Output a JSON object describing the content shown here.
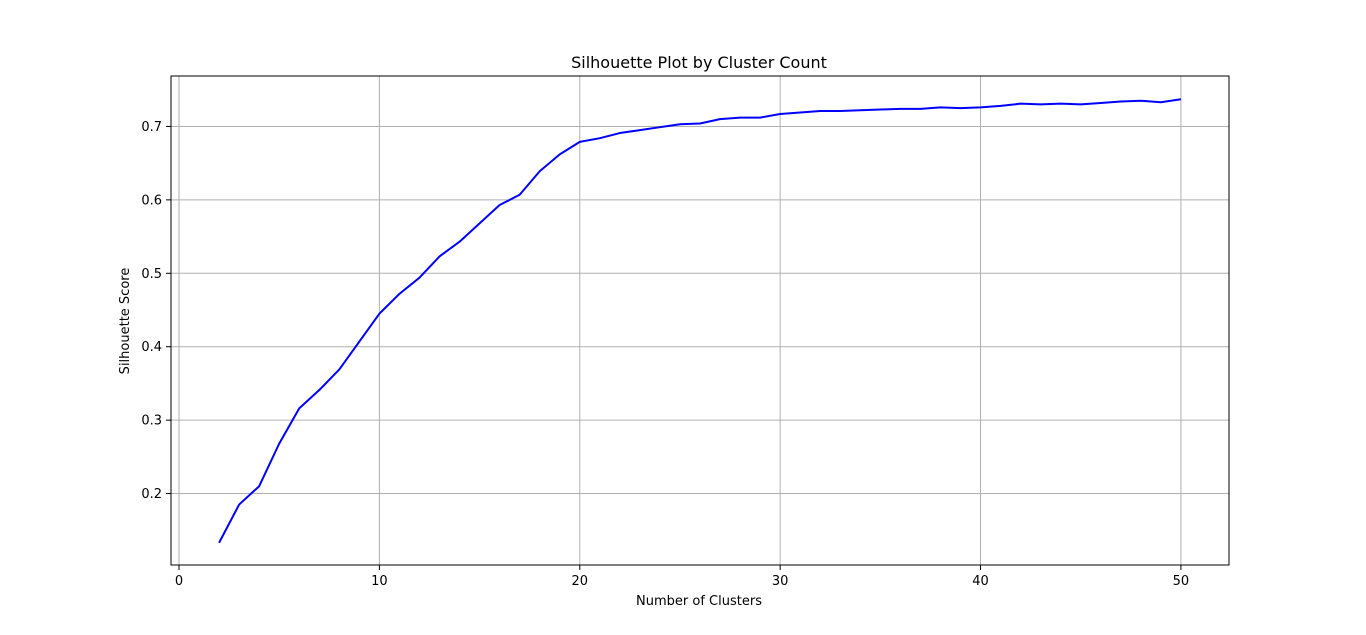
{
  "chart_data": {
    "type": "line",
    "title": "Silhouette Plot by Cluster Count",
    "xlabel": "Number of Clusters",
    "ylabel": "Silhouette Score",
    "xlim": [
      -0.4,
      52.4
    ],
    "ylim": [
      0.1027,
      0.7687
    ],
    "xticks": [
      0,
      10,
      20,
      30,
      40,
      50
    ],
    "yticks": [
      0.2,
      0.3,
      0.4,
      0.5,
      0.6,
      0.7
    ],
    "grid": true,
    "series": [
      {
        "color": "#0000ff",
        "x": [
          2,
          3,
          4,
          5,
          6,
          7,
          8,
          9,
          10,
          11,
          12,
          13,
          14,
          15,
          16,
          17,
          18,
          19,
          20,
          21,
          22,
          23,
          24,
          25,
          26,
          27,
          28,
          29,
          30,
          31,
          32,
          33,
          34,
          35,
          36,
          37,
          38,
          39,
          40,
          41,
          42,
          43,
          44,
          45,
          46,
          47,
          48,
          49,
          50
        ],
        "y": [
          0.133,
          0.185,
          0.21,
          0.268,
          0.316,
          0.341,
          0.369,
          0.407,
          0.445,
          0.472,
          0.494,
          0.523,
          0.543,
          0.568,
          0.593,
          0.607,
          0.639,
          0.662,
          0.679,
          0.684,
          0.691,
          0.695,
          0.699,
          0.703,
          0.704,
          0.71,
          0.712,
          0.712,
          0.717,
          0.719,
          0.721,
          0.721,
          0.722,
          0.723,
          0.724,
          0.724,
          0.726,
          0.725,
          0.726,
          0.728,
          0.731,
          0.73,
          0.731,
          0.73,
          0.732,
          0.734,
          0.735,
          0.733,
          0.737
        ]
      }
    ]
  }
}
